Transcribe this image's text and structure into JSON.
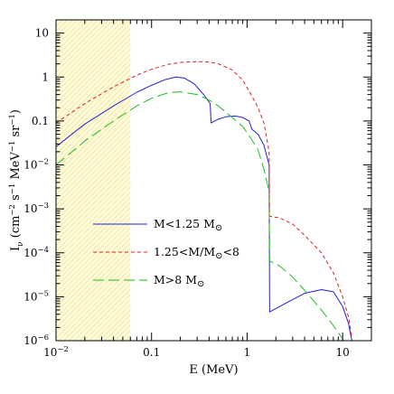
{
  "chart_data": {
    "type": "line",
    "xlabel": "E (MeV)",
    "ylabel": "I_ν (cm⁻² s⁻¹ MeV⁻¹ sr⁻¹)",
    "ylabel_parts": {
      "main": "I",
      "sub": "ν",
      "unit_open": " (cm",
      "exp1": "−2",
      "s": " s",
      "exp2": "−1",
      "mev": " MeV",
      "exp3": "−1",
      "sr": " sr",
      "exp4": "−1",
      "unit_close": ")"
    },
    "x_scale": "log",
    "y_scale": "log",
    "xlim": [
      0.01,
      20
    ],
    "ylim": [
      1e-06,
      20
    ],
    "x_ticks": [
      {
        "value": 0.01,
        "base": "10",
        "exp": "−2"
      },
      {
        "value": 0.1,
        "text": "0.1"
      },
      {
        "value": 1,
        "text": "1"
      },
      {
        "value": 10,
        "text": "10"
      }
    ],
    "y_ticks": [
      {
        "value": 1e-06,
        "base": "10",
        "exp": "−6"
      },
      {
        "value": 1e-05,
        "base": "10",
        "exp": "−5"
      },
      {
        "value": 0.0001,
        "base": "10",
        "exp": "−4"
      },
      {
        "value": 0.001,
        "base": "10",
        "exp": "−3"
      },
      {
        "value": 0.01,
        "base": "10",
        "exp": "−2"
      },
      {
        "value": 0.1,
        "text": "0.1"
      },
      {
        "value": 1,
        "text": "1"
      },
      {
        "value": 10,
        "text": "10"
      }
    ],
    "shaded_region": {
      "x_range": [
        0.01,
        0.06
      ],
      "color": "#f2ee8a"
    },
    "series": [
      {
        "name": "M<1.25 M⊙",
        "legend_main": "M<1.25 M",
        "legend_sym": "⊙",
        "color": "#2222cc",
        "dash": "solid",
        "points": [
          [
            0.01,
            0.026
          ],
          [
            0.02,
            0.085
          ],
          [
            0.04,
            0.22
          ],
          [
            0.07,
            0.45
          ],
          [
            0.1,
            0.65
          ],
          [
            0.14,
            0.88
          ],
          [
            0.18,
            1.0
          ],
          [
            0.22,
            0.95
          ],
          [
            0.28,
            0.7
          ],
          [
            0.35,
            0.4
          ],
          [
            0.41,
            0.25
          ],
          [
            0.42,
            0.09
          ],
          [
            0.5,
            0.11
          ],
          [
            0.6,
            0.125
          ],
          [
            0.75,
            0.13
          ],
          [
            0.9,
            0.12
          ],
          [
            1.05,
            0.1
          ],
          [
            1.12,
            0.065
          ],
          [
            1.3,
            0.05
          ],
          [
            1.5,
            0.028
          ],
          [
            1.7,
            0.01
          ],
          [
            1.72,
            4.5e-06
          ],
          [
            2.5,
            7e-06
          ],
          [
            4,
            1.2e-05
          ],
          [
            6,
            1.45e-05
          ],
          [
            8,
            1.3e-05
          ],
          [
            10,
            6e-06
          ],
          [
            11.5,
            2.5e-06
          ],
          [
            12.5,
            1e-06
          ]
        ]
      },
      {
        "name": "1.25<M/M⊙<8",
        "legend_main": "1.25<M/M",
        "legend_sym": "⊙",
        "legend_tail": "<8",
        "color": "#dd2222",
        "dash": "short",
        "points": [
          [
            0.01,
            0.09
          ],
          [
            0.02,
            0.25
          ],
          [
            0.04,
            0.6
          ],
          [
            0.07,
            1.1
          ],
          [
            0.1,
            1.5
          ],
          [
            0.15,
            1.95
          ],
          [
            0.2,
            2.15
          ],
          [
            0.3,
            2.25
          ],
          [
            0.4,
            2.2
          ],
          [
            0.5,
            2.0
          ],
          [
            0.7,
            1.45
          ],
          [
            0.9,
            0.85
          ],
          [
            1.1,
            0.4
          ],
          [
            1.3,
            0.2
          ],
          [
            1.5,
            0.09
          ],
          [
            1.7,
            0.02
          ],
          [
            1.72,
            0.00068
          ],
          [
            2.2,
            0.00062
          ],
          [
            3,
            0.00045
          ],
          [
            4,
            0.00025
          ],
          [
            6,
            0.0001
          ],
          [
            8,
            3.5e-05
          ],
          [
            10,
            1e-05
          ],
          [
            11.5,
            3.5e-06
          ],
          [
            12.5,
            1.2e-06
          ]
        ]
      },
      {
        "name": "M>8 M⊙",
        "legend_main": "M>8 M",
        "legend_sym": "⊙",
        "color": "#22bb22",
        "dash": "long",
        "points": [
          [
            0.01,
            0.01
          ],
          [
            0.02,
            0.035
          ],
          [
            0.04,
            0.1
          ],
          [
            0.07,
            0.22
          ],
          [
            0.1,
            0.33
          ],
          [
            0.15,
            0.44
          ],
          [
            0.2,
            0.46
          ],
          [
            0.3,
            0.4
          ],
          [
            0.4,
            0.3
          ],
          [
            0.5,
            0.22
          ],
          [
            0.7,
            0.12
          ],
          [
            0.9,
            0.075
          ],
          [
            1.1,
            0.04
          ],
          [
            1.3,
            0.022
          ],
          [
            1.5,
            0.008
          ],
          [
            1.7,
            0.0025
          ],
          [
            1.72,
            6.5e-05
          ],
          [
            2.2,
            5e-05
          ],
          [
            3,
            2.8e-05
          ],
          [
            4,
            1.4e-05
          ],
          [
            6,
            5e-06
          ],
          [
            8,
            2.2e-06
          ],
          [
            10,
            1.1e-06
          ],
          [
            12,
            5e-07
          ]
        ]
      }
    ]
  }
}
